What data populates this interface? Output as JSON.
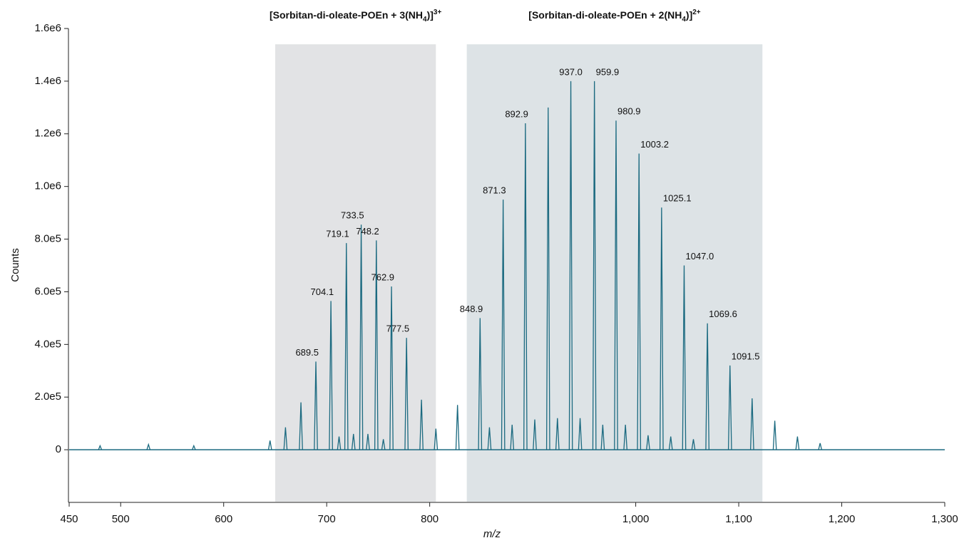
{
  "chart_data": {
    "type": "spectrum",
    "x_label": "m/z",
    "y_label": "Counts",
    "xlim": [
      450,
      1300
    ],
    "xticks": [
      450,
      500,
      600,
      700,
      800,
      {
        "value": 1000,
        "label": "1,000"
      },
      {
        "value": 1100,
        "label": "1,100"
      },
      {
        "value": 1200,
        "label": "1,200"
      },
      {
        "value": 1300,
        "label": "1,300"
      }
    ],
    "ylim": [
      -200000,
      1600000
    ],
    "yticks": [
      0,
      {
        "value": 200000,
        "label": "2.0e5"
      },
      {
        "value": 400000,
        "label": "4.0e5"
      },
      {
        "value": 600000,
        "label": "6.0e5"
      },
      {
        "value": 800000,
        "label": "8.0e5"
      },
      {
        "value": 1000000,
        "label": "1.0e6"
      },
      {
        "value": 1200000,
        "label": "1.2e6"
      },
      {
        "value": 1400000,
        "label": "1.4e6"
      },
      {
        "value": 1600000,
        "label": "1.6e6"
      }
    ],
    "color": "#1b6a80",
    "regions": [
      {
        "x": [
          650,
          806
        ],
        "top": 1540000,
        "color": "#e2e3e5",
        "label": {
          "text": "[Sorbitan-di-oleate-POEn + 3(NH",
          "sub": "4",
          "close": ")]",
          "sup": "3+"
        }
      },
      {
        "x": [
          836,
          1123
        ],
        "top": 1540000,
        "color": "#dde3e6",
        "label": {
          "text": "[Sorbitan-di-oleate-POEn + 2(NH",
          "sub": "4",
          "close": ")]",
          "sup": "2+"
        }
      }
    ],
    "series": [
      {
        "name": "labeled peaks",
        "x": [
          689.5,
          704.1,
          719.1,
          733.5,
          748.2,
          762.9,
          777.5,
          848.9,
          871.3,
          892.9,
          937.0,
          959.9,
          980.9,
          1003.2,
          1025.1,
          1047.0,
          1069.6,
          1091.5
        ],
        "x_labels": [
          "689.5",
          "704.1",
          "719.1",
          "733.5",
          "748.2",
          "762.9",
          "777.5",
          "848.9",
          "871.3",
          "892.9",
          "937.0",
          "959.9",
          "980.9",
          "1003.2",
          "1025.1",
          "1047.0",
          "1069.6",
          "1091.5"
        ],
        "values": [
          335000,
          565000,
          785000,
          855000,
          795000,
          620000,
          425000,
          500000,
          950000,
          1240000,
          1400000,
          1400000,
          1250000,
          1125000,
          920000,
          700000,
          480000,
          320000
        ]
      },
      {
        "name": "other peaks",
        "x": [
          480,
          527,
          571,
          645,
          660,
          675,
          712,
          726,
          740,
          755,
          792,
          806,
          827,
          858,
          880,
          902,
          915,
          924,
          946,
          968,
          990,
          1012,
          1034,
          1056,
          1113,
          1135,
          1157,
          1179
        ],
        "values": [
          15000,
          20000,
          15000,
          35000,
          85000,
          180000,
          50000,
          60000,
          60000,
          40000,
          190000,
          80000,
          170000,
          85000,
          95000,
          115000,
          1300000,
          120000,
          120000,
          95000,
          95000,
          55000,
          50000,
          40000,
          195000,
          110000,
          50000,
          25000
        ]
      }
    ]
  }
}
